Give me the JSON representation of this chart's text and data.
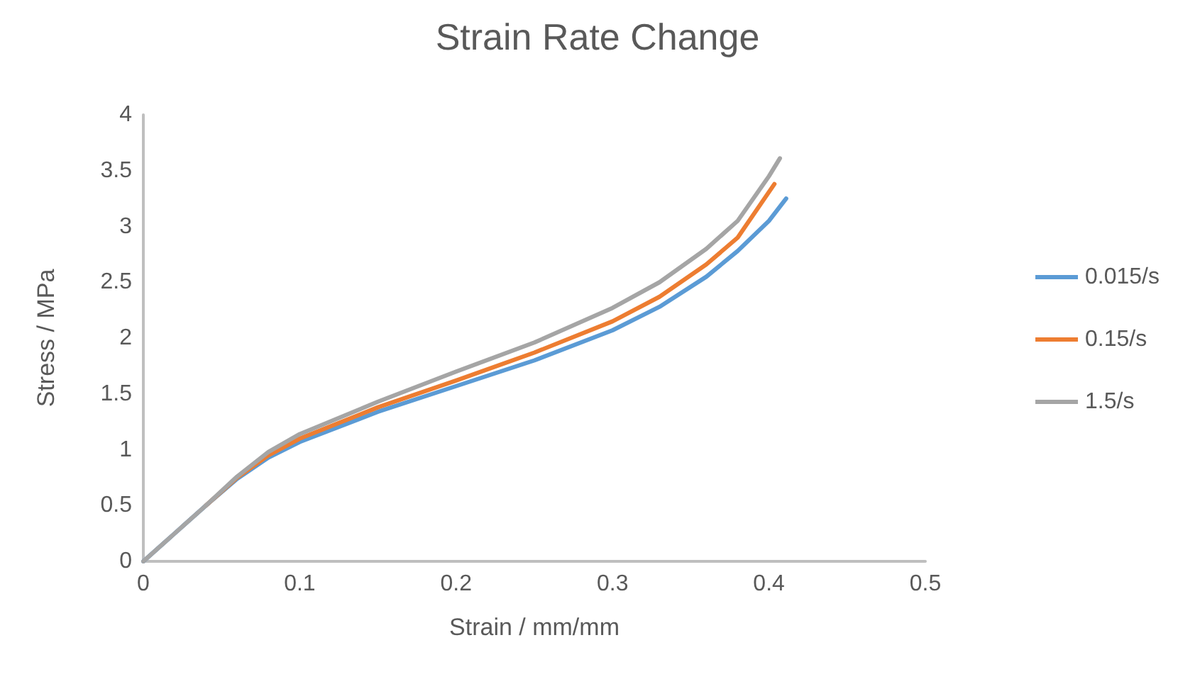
{
  "chart_data": {
    "type": "line",
    "title": "Strain Rate Change",
    "xlabel": "Strain / mm/mm",
    "ylabel": "Stress / MPa",
    "xlim": [
      0,
      0.5
    ],
    "xticks": [
      0,
      0.1,
      0.2,
      0.3,
      0.4,
      0.5
    ],
    "ylim": [
      0,
      4
    ],
    "yticks": [
      0,
      0.5,
      1,
      1.5,
      2,
      2.5,
      3,
      3.5,
      4
    ],
    "grid": false,
    "legend": "right",
    "marker": "none",
    "line_style": "solid",
    "series": [
      {
        "name": "0.015/s",
        "color": "#5b9bd5",
        "x": [
          0,
          0.02,
          0.04,
          0.06,
          0.08,
          0.1,
          0.15,
          0.2,
          0.25,
          0.3,
          0.33,
          0.36,
          0.38,
          0.4,
          0.411
        ],
        "values": [
          0,
          0.25,
          0.5,
          0.74,
          0.93,
          1.07,
          1.34,
          1.57,
          1.8,
          2.07,
          2.28,
          2.55,
          2.78,
          3.05,
          3.25
        ]
      },
      {
        "name": "0.15/s",
        "color": "#ed7d31",
        "x": [
          0.04,
          0.06,
          0.08,
          0.1,
          0.15,
          0.2,
          0.25,
          0.3,
          0.33,
          0.36,
          0.38,
          0.4035
        ],
        "values": [
          0.5,
          0.75,
          0.95,
          1.1,
          1.38,
          1.62,
          1.87,
          2.15,
          2.37,
          2.66,
          2.9,
          3.38
        ]
      },
      {
        "name": "1.5/s",
        "color": "#a5a5a5",
        "x": [
          0,
          0.02,
          0.04,
          0.06,
          0.08,
          0.1,
          0.15,
          0.2,
          0.25,
          0.3,
          0.33,
          0.36,
          0.38,
          0.4,
          0.407
        ],
        "values": [
          0,
          0.25,
          0.5,
          0.76,
          0.98,
          1.14,
          1.43,
          1.7,
          1.96,
          2.27,
          2.5,
          2.8,
          3.05,
          3.45,
          3.61
        ]
      }
    ]
  }
}
